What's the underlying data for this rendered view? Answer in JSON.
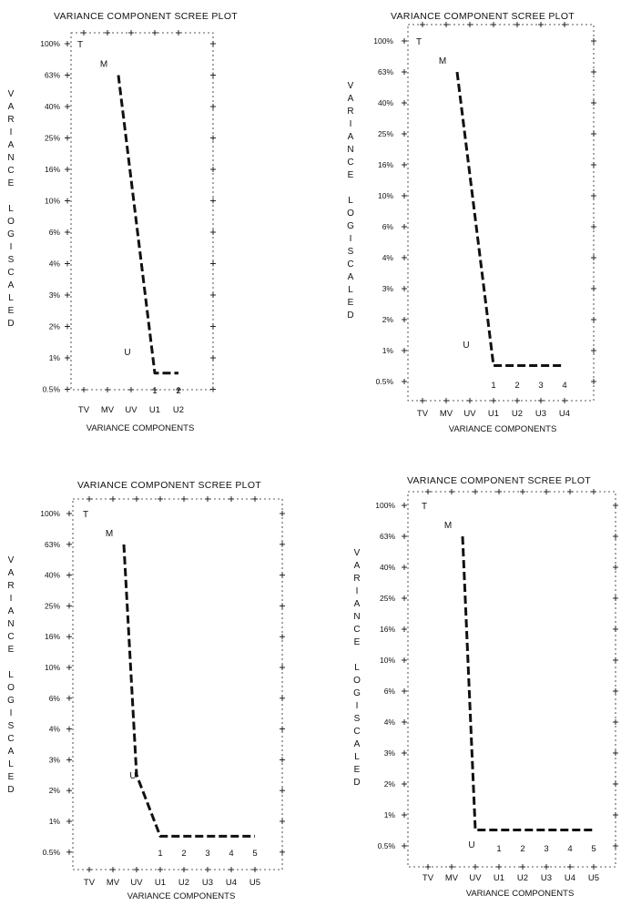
{
  "colors": {
    "ink": "#111111",
    "background": "#ffffff"
  },
  "chart_data": [
    {
      "type": "line",
      "title": "VARIANCE COMPONENT SCREE PLOT",
      "ylabel_letters": [
        "V",
        "A",
        "R",
        "I",
        "A",
        "N",
        "C",
        "E",
        "",
        "L",
        "O",
        "G",
        "I",
        "S",
        "C",
        "A",
        "L",
        "E",
        "D"
      ],
      "xlabel": "VARIANCE COMPONENTS",
      "y_scale": "log",
      "y_ticks": [
        "100%",
        "63%",
        "40%",
        "25%",
        "16%",
        "10%",
        "6%",
        "4%",
        "3%",
        "2%",
        "1%",
        "0.5%"
      ],
      "x_categories": [
        "TV",
        "MV",
        "UV",
        "U1",
        "U2"
      ],
      "u_numbers": [
        "1",
        "2"
      ],
      "markers": [
        {
          "label": "T",
          "category": "TV",
          "value": 100
        },
        {
          "label": "M",
          "category": "MV",
          "value": 75
        },
        {
          "label": "U",
          "category": "UV",
          "value": 1.1
        }
      ],
      "series": [
        {
          "x": [
            "MV",
            "U1",
            "U2"
          ],
          "y": [
            63,
            0.8,
            0.8
          ]
        }
      ]
    },
    {
      "type": "line",
      "title": "VARIANCE COMPONENT SCREE PLOT",
      "ylabel_letters": [
        "V",
        "A",
        "R",
        "I",
        "A",
        "N",
        "C",
        "E",
        "",
        "L",
        "O",
        "G",
        "I",
        "S",
        "C",
        "A",
        "L",
        "E",
        "D"
      ],
      "xlabel": "VARIANCE COMPONENTS",
      "y_scale": "log",
      "y_ticks": [
        "100%",
        "63%",
        "40%",
        "25%",
        "16%",
        "10%",
        "6%",
        "4%",
        "3%",
        "2%",
        "1%",
        "0.5%"
      ],
      "x_categories": [
        "TV",
        "MV",
        "UV",
        "U1",
        "U2",
        "U3",
        "U4"
      ],
      "u_numbers": [
        "1",
        "2",
        "3",
        "4"
      ],
      "markers": [
        {
          "label": "T",
          "category": "TV",
          "value": 100
        },
        {
          "label": "M",
          "category": "MV",
          "value": 75
        },
        {
          "label": "U",
          "category": "UV",
          "value": 1.1
        }
      ],
      "series": [
        {
          "x": [
            "MV",
            "U1",
            "U2",
            "U3",
            "U4"
          ],
          "y": [
            63,
            0.8,
            0.8,
            0.8,
            0.8
          ]
        }
      ]
    },
    {
      "type": "line",
      "title": "VARIANCE COMPONENT SCREE PLOT",
      "ylabel_letters": [
        "V",
        "A",
        "R",
        "I",
        "A",
        "N",
        "C",
        "E",
        "",
        "L",
        "O",
        "G",
        "I",
        "S",
        "C",
        "A",
        "L",
        "E",
        "D"
      ],
      "xlabel": "VARIANCE COMPONENTS",
      "y_scale": "log",
      "y_ticks": [
        "100%",
        "63%",
        "40%",
        "25%",
        "16%",
        "10%",
        "6%",
        "4%",
        "3%",
        "2%",
        "1%",
        "0.5%"
      ],
      "x_categories": [
        "TV",
        "MV",
        "UV",
        "U1",
        "U2",
        "U3",
        "U4",
        "U5"
      ],
      "u_numbers": [
        "1",
        "2",
        "3",
        "4",
        "5"
      ],
      "markers": [
        {
          "label": "T",
          "category": "TV",
          "value": 100
        },
        {
          "label": "M",
          "category": "MV",
          "value": 75
        },
        {
          "label": "U",
          "category": "UV",
          "value": 2
        }
      ],
      "series": [
        {
          "x": [
            "MV",
            "UV",
            "U1",
            "U2",
            "U3",
            "U4",
            "U5"
          ],
          "y": [
            63,
            2,
            0.8,
            0.8,
            0.8,
            0.8,
            0.8
          ]
        }
      ]
    },
    {
      "type": "line",
      "title": "VARIANCE COMPONENT SCREE PLOT",
      "ylabel_letters": [
        "V",
        "A",
        "R",
        "I",
        "A",
        "N",
        "C",
        "E",
        "",
        "L",
        "O",
        "G",
        "I",
        "S",
        "C",
        "A",
        "L",
        "E",
        "D"
      ],
      "xlabel": "VARIANCE COMPONENTS",
      "y_scale": "log",
      "y_ticks": [
        "100%",
        "63%",
        "40%",
        "25%",
        "16%",
        "10%",
        "6%",
        "4%",
        "3%",
        "2%",
        "1%",
        "0.5%"
      ],
      "x_categories": [
        "TV",
        "MV",
        "UV",
        "U1",
        "U2",
        "U3",
        "U4",
        "U5"
      ],
      "u_numbers": [
        "1",
        "2",
        "3",
        "4",
        "5"
      ],
      "markers": [
        {
          "label": "T",
          "category": "TV",
          "value": 100
        },
        {
          "label": "M",
          "category": "MV",
          "value": 75
        },
        {
          "label": "U",
          "category": "UV",
          "value": 0.65
        }
      ],
      "series": [
        {
          "x": [
            "MV",
            "UV",
            "U1",
            "U2",
            "U3",
            "U4",
            "U5"
          ],
          "y": [
            63,
            0.8,
            0.8,
            0.8,
            0.8,
            0.8,
            0.8
          ]
        }
      ]
    }
  ]
}
